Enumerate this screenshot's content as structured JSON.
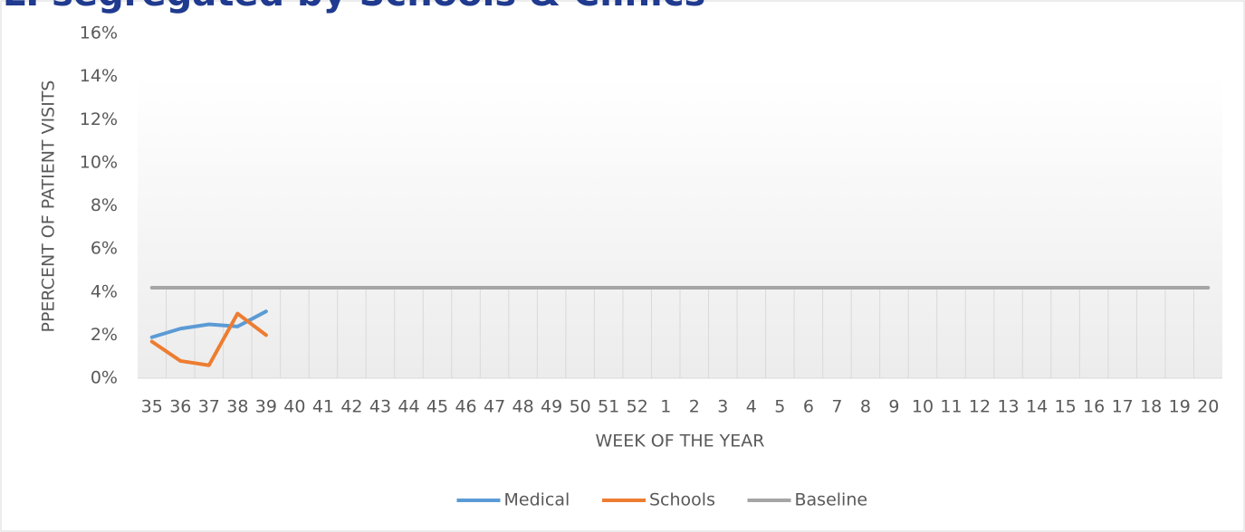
{
  "chart_data": {
    "type": "line",
    "title": "ILI segregated by Schools & Clinics",
    "x_label": "WEEK OF THE YEAR",
    "y_label": "PPERCENT OF PATIENT VISITS",
    "categories": [
      "35",
      "36",
      "37",
      "38",
      "39",
      "40",
      "41",
      "42",
      "43",
      "44",
      "45",
      "46",
      "47",
      "48",
      "49",
      "50",
      "51",
      "52",
      "1",
      "2",
      "3",
      "4",
      "5",
      "6",
      "7",
      "8",
      "9",
      "10",
      "11",
      "12",
      "13",
      "14",
      "15",
      "16",
      "17",
      "18",
      "19",
      "20"
    ],
    "series": [
      {
        "name": "Medical",
        "color": "#5b9bd5",
        "values": [
          1.9,
          2.3,
          2.5,
          2.4,
          3.1,
          null,
          null,
          null,
          null,
          null,
          null,
          null,
          null,
          null,
          null,
          null,
          null,
          null,
          null,
          null,
          null,
          null,
          null,
          null,
          null,
          null,
          null,
          null,
          null,
          null,
          null,
          null,
          null,
          null,
          null,
          null,
          null,
          null
        ]
      },
      {
        "name": "Schools",
        "color": "#ed7d31",
        "values": [
          1.7,
          0.8,
          0.6,
          3.0,
          2.0,
          null,
          null,
          null,
          null,
          null,
          null,
          null,
          null,
          null,
          null,
          null,
          null,
          null,
          null,
          null,
          null,
          null,
          null,
          null,
          null,
          null,
          null,
          null,
          null,
          null,
          null,
          null,
          null,
          null,
          null,
          null,
          null,
          null
        ]
      },
      {
        "name": "Baseline",
        "color": "#a5a5a5",
        "values": [
          4.2,
          4.2,
          4.2,
          4.2,
          4.2,
          4.2,
          4.2,
          4.2,
          4.2,
          4.2,
          4.2,
          4.2,
          4.2,
          4.2,
          4.2,
          4.2,
          4.2,
          4.2,
          4.2,
          4.2,
          4.2,
          4.2,
          4.2,
          4.2,
          4.2,
          4.2,
          4.2,
          4.2,
          4.2,
          4.2,
          4.2,
          4.2,
          4.2,
          4.2,
          4.2,
          4.2,
          4.2,
          4.2
        ]
      }
    ],
    "ylim": [
      0,
      16
    ],
    "yticks": [
      {
        "value": 0,
        "label": "0%"
      },
      {
        "value": 2,
        "label": "2%"
      },
      {
        "value": 4,
        "label": "4%"
      },
      {
        "value": 6,
        "label": "6%"
      },
      {
        "value": 8,
        "label": "8%"
      },
      {
        "value": 10,
        "label": "10%"
      },
      {
        "value": 12,
        "label": "12%"
      },
      {
        "value": 14,
        "label": "14%"
      },
      {
        "value": 16,
        "label": "16%"
      }
    ],
    "legend": "bottom"
  }
}
